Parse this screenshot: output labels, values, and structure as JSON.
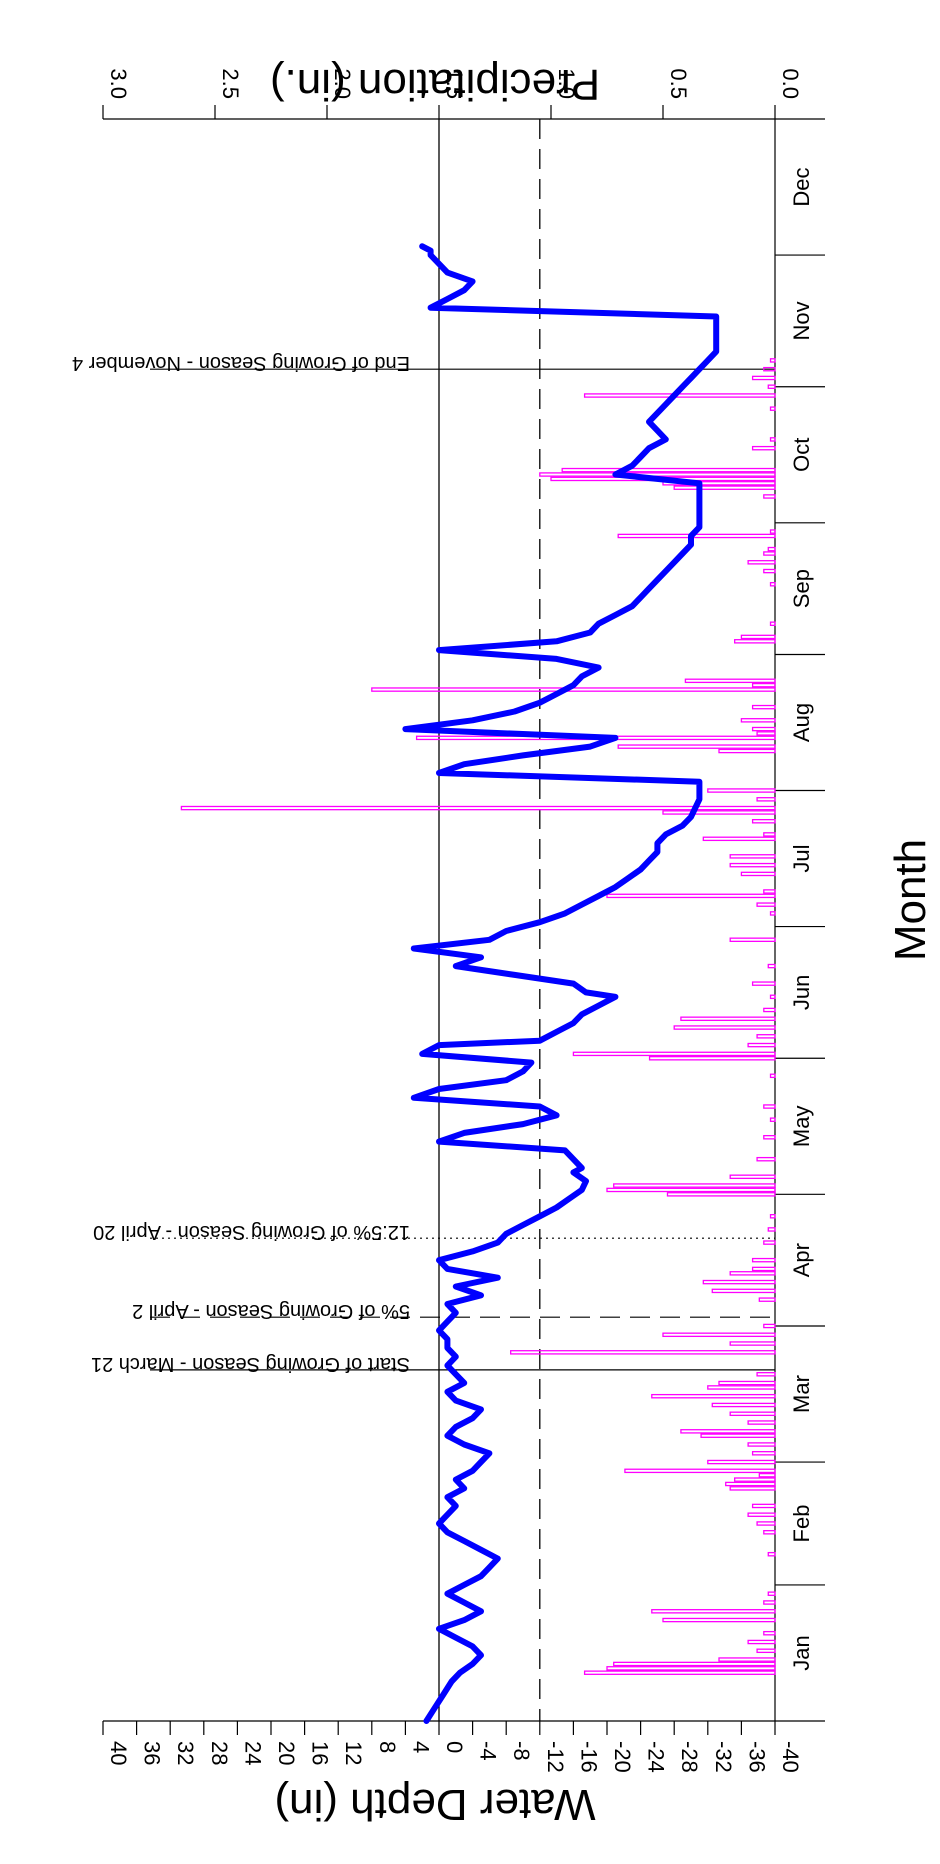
{
  "chart_data": {
    "type": "line",
    "ylabel": "Water Depth (in)",
    "y2label": "Precipitation (in.)",
    "xlabel": "Month",
    "months": [
      "Jan",
      "Feb",
      "Mar",
      "Apr",
      "May",
      "Jun",
      "Jul",
      "Aug",
      "Sep",
      "Oct",
      "Nov",
      "Dec"
    ],
    "x_range_days": [
      0,
      365
    ],
    "ylim": [
      -40,
      40
    ],
    "yticks": [
      40,
      36,
      32,
      28,
      24,
      20,
      16,
      12,
      8,
      4,
      0,
      -4,
      -8,
      -12,
      -16,
      -20,
      -24,
      -28,
      -32,
      -36,
      -40
    ],
    "y2lim": [
      0.0,
      3.0
    ],
    "y2ticks": [
      "0.0",
      "0.5",
      "1.0",
      "1.5",
      "2.0",
      "2.5",
      "3.0"
    ],
    "reference_lines": [
      {
        "name": "zero",
        "value": 0,
        "style": "solid"
      },
      {
        "name": "minus-12",
        "value": -12,
        "style": "dashed"
      }
    ],
    "annotations": [
      {
        "label": "Start of Growing Season - March 21",
        "day": 80,
        "style": "solid"
      },
      {
        "label": "5% of Growing Season - April 2",
        "day": 92,
        "style": "dashed"
      },
      {
        "label": "12.5% of Growing Season - April 20",
        "day": 110,
        "style": "dotted"
      },
      {
        "label": "End of Growing Season - November 4",
        "day": 308,
        "style": "solid"
      }
    ],
    "series": [
      {
        "name": "Water Depth",
        "color": "#0000ff",
        "points": [
          [
            0,
            1.5
          ],
          [
            3,
            0.5
          ],
          [
            6,
            -0.5
          ],
          [
            9,
            -1.5
          ],
          [
            11,
            -2.5
          ],
          [
            13,
            -4
          ],
          [
            15,
            -5
          ],
          [
            17,
            -4
          ],
          [
            19,
            -2
          ],
          [
            21,
            0
          ],
          [
            23,
            -3
          ],
          [
            25,
            -5
          ],
          [
            27,
            -3
          ],
          [
            29,
            -1
          ],
          [
            31,
            -3
          ],
          [
            33,
            -5
          ],
          [
            35,
            -6
          ],
          [
            37,
            -7
          ],
          [
            39,
            -5
          ],
          [
            41,
            -3
          ],
          [
            43,
            -1
          ],
          [
            45,
            0
          ],
          [
            47,
            -1
          ],
          [
            49,
            -2
          ],
          [
            51,
            -1
          ],
          [
            53,
            -3
          ],
          [
            55,
            -2
          ],
          [
            57,
            -4
          ],
          [
            59,
            -5
          ],
          [
            61,
            -6
          ],
          [
            63,
            -3
          ],
          [
            65,
            -1
          ],
          [
            67,
            -2
          ],
          [
            69,
            -4
          ],
          [
            71,
            -5
          ],
          [
            73,
            -2
          ],
          [
            75,
            -1
          ],
          [
            77,
            -3
          ],
          [
            79,
            -2
          ],
          [
            81,
            -1
          ],
          [
            83,
            -2
          ],
          [
            85,
            -1
          ],
          [
            87,
            -1
          ],
          [
            89,
            0
          ],
          [
            91,
            -1
          ],
          [
            93,
            -2
          ],
          [
            95,
            -1
          ],
          [
            97,
            -5
          ],
          [
            99,
            -2
          ],
          [
            101,
            -7
          ],
          [
            103,
            -1
          ],
          [
            105,
            0
          ],
          [
            107,
            -4
          ],
          [
            109,
            -7
          ],
          [
            111,
            -8
          ],
          [
            113,
            -10
          ],
          [
            115,
            -12
          ],
          [
            117,
            -14
          ],
          [
            119,
            -15.5
          ],
          [
            121,
            -17
          ],
          [
            123,
            -17.5
          ],
          [
            125,
            -16
          ],
          [
            126,
            -17
          ],
          [
            128,
            -16
          ],
          [
            130,
            -15
          ],
          [
            132,
            0
          ],
          [
            134,
            -3
          ],
          [
            136,
            -10
          ],
          [
            138,
            -14
          ],
          [
            140,
            -12
          ],
          [
            142,
            3
          ],
          [
            144,
            0
          ],
          [
            146,
            -8
          ],
          [
            148,
            -10
          ],
          [
            150,
            -11
          ],
          [
            152,
            2
          ],
          [
            154,
            0
          ],
          [
            155,
            -12
          ],
          [
            157,
            -14
          ],
          [
            159,
            -16
          ],
          [
            161,
            -17
          ],
          [
            163,
            -19
          ],
          [
            165,
            -21
          ],
          [
            166,
            -17.5
          ],
          [
            168,
            -16
          ],
          [
            170,
            -9
          ],
          [
            172,
            -2
          ],
          [
            174,
            -5
          ],
          [
            176,
            3
          ],
          [
            178,
            -6
          ],
          [
            180,
            -8
          ],
          [
            182,
            -12
          ],
          [
            184,
            -15
          ],
          [
            186,
            -17
          ],
          [
            188,
            -19
          ],
          [
            190,
            -21
          ],
          [
            192,
            -22.5
          ],
          [
            194,
            -24
          ],
          [
            196,
            -25
          ],
          [
            198,
            -26
          ],
          [
            200,
            -26
          ],
          [
            202,
            -27
          ],
          [
            204,
            -29
          ],
          [
            206,
            -30
          ],
          [
            208,
            -30.5
          ],
          [
            210,
            -31
          ],
          [
            212,
            -31
          ],
          [
            214,
            -31
          ],
          [
            216,
            0
          ],
          [
            218,
            -3
          ],
          [
            220,
            -10
          ],
          [
            222,
            -18
          ],
          [
            224,
            -21
          ],
          [
            226,
            4
          ],
          [
            228,
            -4
          ],
          [
            230,
            -9
          ],
          [
            232,
            -12
          ],
          [
            234,
            -14
          ],
          [
            236,
            -16
          ],
          [
            238,
            -17
          ],
          [
            240,
            -19
          ],
          [
            242,
            -14
          ],
          [
            244,
            0
          ],
          [
            246,
            -14
          ],
          [
            248,
            -18
          ],
          [
            250,
            -19
          ],
          [
            252,
            -21
          ],
          [
            254,
            -23
          ],
          [
            256,
            -24
          ],
          [
            258,
            -25
          ],
          [
            260,
            -26
          ],
          [
            262,
            -27
          ],
          [
            264,
            -28
          ],
          [
            266,
            -29
          ],
          [
            268,
            -30
          ],
          [
            270,
            -30
          ],
          [
            272,
            -31
          ],
          [
            275,
            -31
          ],
          [
            278,
            -31
          ],
          [
            282,
            -31
          ],
          [
            284,
            -21
          ],
          [
            286,
            -23
          ],
          [
            288,
            -24
          ],
          [
            290,
            -25
          ],
          [
            292,
            -27
          ],
          [
            294,
            -26
          ],
          [
            296,
            -25
          ],
          [
            298,
            -26
          ],
          [
            300,
            -27
          ],
          [
            302,
            -28
          ],
          [
            304,
            -29
          ],
          [
            306,
            -30
          ],
          [
            308,
            -31
          ],
          [
            310,
            -32
          ],
          [
            312,
            -33
          ],
          [
            314,
            -33
          ],
          [
            316,
            -33
          ],
          [
            318,
            -33
          ],
          [
            320,
            -33
          ],
          [
            322,
            1
          ],
          [
            324,
            -1
          ],
          [
            326,
            -3
          ],
          [
            328,
            -4
          ],
          [
            330,
            -1
          ],
          [
            332,
            0
          ],
          [
            334,
            1
          ],
          [
            335,
            1
          ],
          [
            336,
            2
          ]
        ]
      },
      {
        "name": "Precipitation",
        "color": "#ff00ff",
        "bars": [
          [
            11,
            0.85
          ],
          [
            12,
            0.75
          ],
          [
            13,
            0.72
          ],
          [
            14,
            0.25
          ],
          [
            16,
            0.08
          ],
          [
            18,
            0.12
          ],
          [
            20,
            0.05
          ],
          [
            23,
            0.5
          ],
          [
            25,
            0.55
          ],
          [
            27,
            0.05
          ],
          [
            29,
            0.03
          ],
          [
            38,
            0.03
          ],
          [
            43,
            0.05
          ],
          [
            45,
            0.08
          ],
          [
            47,
            0.12
          ],
          [
            49,
            0.1
          ],
          [
            53,
            0.2
          ],
          [
            54,
            0.22
          ],
          [
            55,
            0.18
          ],
          [
            56,
            0.07
          ],
          [
            57,
            0.67
          ],
          [
            59,
            0.3
          ],
          [
            61,
            0.1
          ],
          [
            63,
            0.12
          ],
          [
            65,
            0.33
          ],
          [
            66,
            0.42
          ],
          [
            68,
            0.12
          ],
          [
            70,
            0.2
          ],
          [
            72,
            0.28
          ],
          [
            74,
            0.55
          ],
          [
            76,
            0.3
          ],
          [
            77,
            0.25
          ],
          [
            79,
            0.08
          ],
          [
            84,
            1.18
          ],
          [
            86,
            0.2
          ],
          [
            88,
            0.5
          ],
          [
            90,
            0.05
          ],
          [
            96,
            0.07
          ],
          [
            98,
            0.28
          ],
          [
            100,
            0.32
          ],
          [
            102,
            0.2
          ],
          [
            103,
            0.1
          ],
          [
            105,
            0.1
          ],
          [
            109,
            0.05
          ],
          [
            112,
            0.03
          ],
          [
            115,
            0.02
          ],
          [
            120,
            0.48
          ],
          [
            121,
            0.75
          ],
          [
            122,
            0.72
          ],
          [
            124,
            0.2
          ],
          [
            128,
            0.08
          ],
          [
            133,
            0.05
          ],
          [
            137,
            0.02
          ],
          [
            140,
            0.05
          ],
          [
            147,
            0.02
          ],
          [
            151,
            0.56
          ],
          [
            152,
            0.9
          ],
          [
            154,
            0.12
          ],
          [
            156,
            0.08
          ],
          [
            158,
            0.45
          ],
          [
            160,
            0.42
          ],
          [
            162,
            0.05
          ],
          [
            165,
            0.02
          ],
          [
            168,
            0.1
          ],
          [
            172,
            0.03
          ],
          [
            178,
            0.2
          ],
          [
            184,
            0.02
          ],
          [
            186,
            0.08
          ],
          [
            188,
            0.75
          ],
          [
            189,
            0.05
          ],
          [
            193,
            0.15
          ],
          [
            195,
            0.2
          ],
          [
            197,
            0.2
          ],
          [
            201,
            0.32
          ],
          [
            202,
            0.05
          ],
          [
            205,
            0.1
          ],
          [
            207,
            0.5
          ],
          [
            208,
            2.65
          ],
          [
            210,
            0.08
          ],
          [
            212,
            0.3
          ],
          [
            221,
            0.25
          ],
          [
            222,
            0.7
          ],
          [
            224,
            1.6
          ],
          [
            225,
            0.08
          ],
          [
            226,
            0.1
          ],
          [
            228,
            0.15
          ],
          [
            231,
            0.1
          ],
          [
            235,
            1.8
          ],
          [
            236,
            0.1
          ],
          [
            237,
            0.4
          ],
          [
            246,
            0.18
          ],
          [
            247,
            0.15
          ],
          [
            250,
            0.02
          ],
          [
            259,
            0.02
          ],
          [
            262,
            0.05
          ],
          [
            264,
            0.12
          ],
          [
            266,
            0.05
          ],
          [
            267,
            0.03
          ],
          [
            270,
            0.7
          ],
          [
            271,
            0.02
          ],
          [
            279,
            0.05
          ],
          [
            281,
            0.45
          ],
          [
            282,
            0.5
          ],
          [
            283,
            1.0
          ],
          [
            284,
            1.05
          ],
          [
            285,
            0.95
          ],
          [
            290,
            0.1
          ],
          [
            292,
            0.02
          ],
          [
            299,
            0.02
          ],
          [
            302,
            0.85
          ],
          [
            304,
            0.03
          ],
          [
            306,
            0.1
          ],
          [
            308,
            0.05
          ],
          [
            310,
            0.02
          ]
        ]
      }
    ],
    "legend": "none",
    "grid": false
  }
}
